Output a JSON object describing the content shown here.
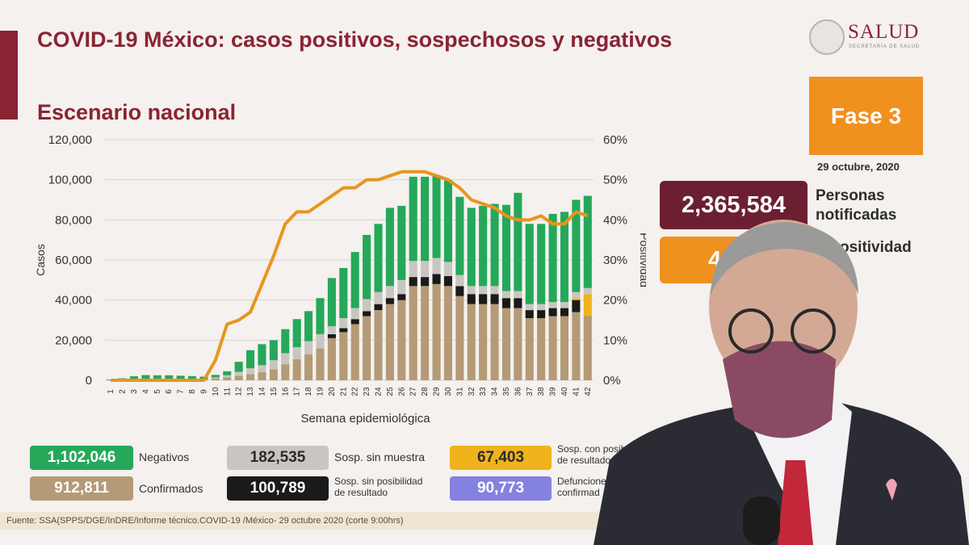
{
  "header": {
    "title": "COVID-19 México: casos positivos, sospechosos y negativos",
    "subtitle": "Escenario nacional"
  },
  "logo": {
    "text": "SALUD",
    "sub": "SECRETARÍA DE SALUD"
  },
  "phase": {
    "label": "Fase 3",
    "date": "29 octubre, 2020"
  },
  "notified": {
    "value": "2,365,584",
    "label_line1": "Personas",
    "label_line2": "notificadas"
  },
  "positivity": {
    "value": "4",
    "label": "ositividad"
  },
  "chart_data": {
    "type": "bar",
    "xlabel": "Semana epidemiológica",
    "ylabel": "Casos",
    "y2label": "Positividad",
    "ylim": [
      0,
      120000
    ],
    "y2lim": [
      0,
      60
    ],
    "yticks": [
      "0",
      "20,000",
      "40,000",
      "60,000",
      "80,000",
      "100,000",
      "120,000"
    ],
    "y2ticks": [
      "0%",
      "10%",
      "20%",
      "30%",
      "40%",
      "50%",
      "60%"
    ],
    "categories": [
      "1",
      "2",
      "3",
      "4",
      "5",
      "6",
      "7",
      "8",
      "9",
      "10",
      "11",
      "12",
      "13",
      "14",
      "15",
      "16",
      "17",
      "18",
      "19",
      "20",
      "21",
      "22",
      "23",
      "24",
      "25",
      "26",
      "27",
      "28",
      "29",
      "30",
      "31",
      "32",
      "33",
      "34",
      "35",
      "36",
      "37",
      "38",
      "39",
      "40",
      "41",
      "42"
    ],
    "series": [
      {
        "key": "confirmados",
        "color": "#b49a76",
        "values": [
          100,
          200,
          300,
          400,
          300,
          300,
          300,
          400,
          500,
          900,
          1500,
          2200,
          3000,
          4000,
          5500,
          8000,
          10500,
          13000,
          16000,
          21000,
          24000,
          28000,
          32000,
          35000,
          38000,
          40000,
          47000,
          47000,
          48000,
          47000,
          42000,
          38000,
          38000,
          38000,
          36000,
          36000,
          31000,
          31000,
          32000,
          32000,
          34000,
          32000
        ]
      },
      {
        "key": "defunciones_por_confirmar",
        "color": "#1a1a1a",
        "values": [
          0,
          0,
          0,
          0,
          0,
          0,
          0,
          0,
          0,
          0,
          0,
          0,
          0,
          0,
          0,
          0,
          0,
          0,
          0,
          0,
          0,
          0,
          0,
          0,
          0,
          0,
          0,
          0,
          0,
          0,
          0,
          0,
          0,
          0,
          0,
          0,
          0,
          0,
          0,
          0,
          0,
          0
        ]
      },
      {
        "key": "sin_posibilidad",
        "color": "#1a1a1a",
        "values": [
          0,
          0,
          0,
          0,
          0,
          0,
          0,
          0,
          0,
          0,
          0,
          0,
          0,
          0,
          0,
          0,
          0,
          0,
          0,
          2000,
          2000,
          2500,
          2500,
          3000,
          3000,
          3000,
          4500,
          4500,
          5000,
          5000,
          5000,
          5000,
          5000,
          5000,
          5000,
          5000,
          4000,
          4000,
          4000,
          4000,
          6000,
          0
        ]
      },
      {
        "key": "con_posibilidad",
        "color": "#f0b31c",
        "values": [
          0,
          0,
          0,
          0,
          0,
          0,
          0,
          0,
          0,
          0,
          0,
          0,
          0,
          0,
          0,
          0,
          0,
          0,
          0,
          0,
          0,
          0,
          0,
          0,
          0,
          0,
          0,
          0,
          0,
          0,
          0,
          0,
          0,
          0,
          0,
          0,
          0,
          0,
          0,
          0,
          1000,
          11000
        ]
      },
      {
        "key": "sin_muestra",
        "color": "#c9c6c2",
        "values": [
          0,
          0,
          0,
          0,
          0,
          0,
          0,
          0,
          0,
          500,
          1000,
          2000,
          3000,
          3500,
          4500,
          5500,
          6000,
          6500,
          7000,
          4000,
          5000,
          5500,
          6000,
          6000,
          6000,
          7000,
          8000,
          8000,
          8000,
          7000,
          5500,
          4000,
          4000,
          4000,
          3500,
          3500,
          3000,
          3000,
          3000,
          3000,
          3000,
          3000
        ]
      },
      {
        "key": "negativos",
        "color": "#25a85a",
        "values": [
          300,
          800,
          1700,
          2200,
          2200,
          2200,
          2000,
          1700,
          1300,
          1300,
          2000,
          5000,
          9000,
          10500,
          10000,
          12000,
          14000,
          15000,
          18000,
          24000,
          25000,
          28000,
          32000,
          34000,
          39000,
          37000,
          42000,
          42000,
          41000,
          41000,
          39000,
          39000,
          40000,
          41000,
          43000,
          49000,
          40000,
          40000,
          44000,
          45000,
          46000,
          46000
        ]
      }
    ],
    "positivity_line": {
      "name": "Positividad",
      "color": "#e8951e",
      "values": [
        0,
        0,
        0,
        0,
        0,
        0,
        0,
        0,
        0,
        5,
        14,
        15,
        17,
        24,
        31,
        39,
        42,
        42,
        44,
        46,
        48,
        48,
        50,
        50,
        51,
        52,
        52,
        52,
        51,
        50,
        48,
        45,
        44,
        43,
        41,
        40,
        40,
        41,
        39,
        39,
        42,
        41
      ]
    }
  },
  "legend": [
    {
      "value": "1,102,046",
      "label": "Negativos",
      "color": "#25a85a",
      "text_color": "#ffffff"
    },
    {
      "value": "912,811",
      "label": "Confirmados",
      "color": "#b49a76",
      "text_color": "#ffffff"
    },
    {
      "value": "182,535",
      "label": "Sosp. sin muestra",
      "color": "#c9c6c2",
      "text_color": "#2b2b2b"
    },
    {
      "value": "100,789",
      "label1": "Sosp. sin posibilidad",
      "label2": "de resultado",
      "color": "#1a1a1a",
      "text_color": "#ffffff"
    },
    {
      "value": "67,403",
      "label1": "Sosp. con posibilidad",
      "label2": "de resultado",
      "color": "#f0b31c",
      "text_color": "#2b2b2b"
    },
    {
      "value": "90,773",
      "label1": "Defuncione",
      "label2": "confirmad",
      "color": "#8581e0",
      "text_color": "#ffffff"
    }
  ],
  "footer": {
    "text": "Fuente: SSA(SPPS/DGE/InDRE/Informe técnico.COVID-19 /México- 29 octubre 2020 (corte 9:00hrs)"
  }
}
